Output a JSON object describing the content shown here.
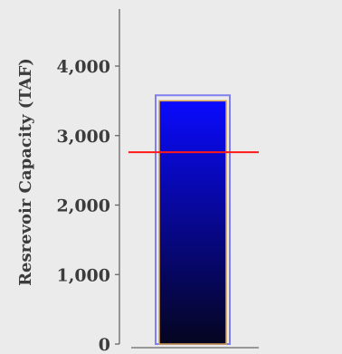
{
  "chart_data": {
    "type": "bar",
    "title": "",
    "xlabel": "",
    "ylabel": "Resrevoir Capacity (TAF)",
    "ylim": [
      0,
      4600
    ],
    "yticks": [
      0,
      1000,
      2000,
      3000,
      4000
    ],
    "ytick_labels": [
      "0",
      "1,000",
      "2,000",
      "3,000",
      "4,000"
    ],
    "categories": [
      ""
    ],
    "values": [
      3580
    ],
    "inner_value": 3500,
    "reference_value": 2760,
    "colors": {
      "background": "#ebebeb",
      "axis": "#666666",
      "bar_top": "#0a0aff",
      "bar_bottom": "#050520",
      "bar_outer_outline": "#7f7ff0",
      "bar_inner_outline": "#d9a050",
      "reference_line": "#ff1a1a"
    }
  }
}
